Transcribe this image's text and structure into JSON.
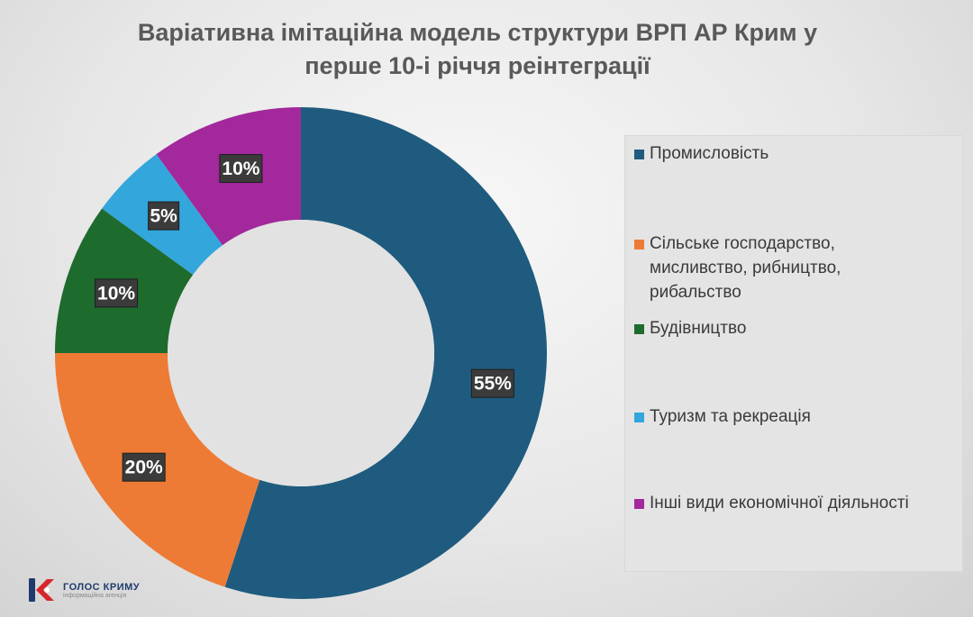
{
  "chart_data": {
    "type": "pie",
    "title": "Варіативна імітаційна модель структури ВРП АР Крим у перше 10-і річчя реінтеграції",
    "title_lines": [
      "Варіативна імітаційна модель структури ВРП АР Крим у",
      "перше 10-і річчя реінтеграції"
    ],
    "donut": true,
    "legend_position": "right",
    "slices": [
      {
        "name": "Промисловість",
        "value": 55,
        "label": "55%",
        "color": "#1f5b7e"
      },
      {
        "name": "Сільське господарство, мисливство, рибництво, рибальство",
        "value": 20,
        "label": "20%",
        "color": "#ed7b35"
      },
      {
        "name": "Будівництво",
        "value": 10,
        "label": "10%",
        "color": "#1e6b2e"
      },
      {
        "name": "Туризм та рекреація",
        "value": 5,
        "label": "5%",
        "color": "#33a6dc"
      },
      {
        "name": "Інші види економічної діяльності",
        "value": 10,
        "label": "10%",
        "color": "#a2289c"
      }
    ]
  },
  "logo": {
    "name": "ГОЛОС КРИМУ",
    "subtitle": "інформаційна агенція"
  }
}
